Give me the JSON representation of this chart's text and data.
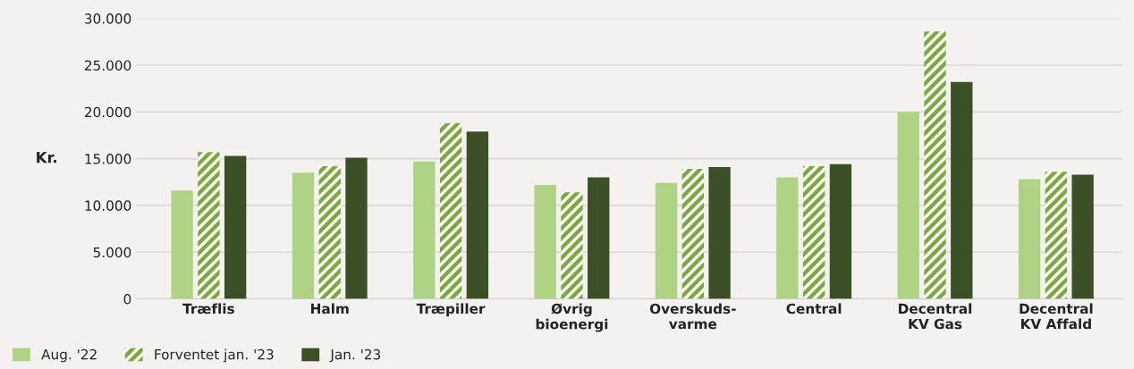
{
  "chart_data": {
    "type": "bar",
    "ylabel": "Kr.",
    "categories": [
      "Træflis",
      "Halm",
      "Træpiller",
      "Øvrig\nbioenergi",
      "Overskuds-\nvarme",
      "Central",
      "Decentral\nKV Gas",
      "Decentral\nKV Affald"
    ],
    "series": [
      {
        "name": "Aug. '22",
        "color": "#aed383",
        "values": [
          11600,
          13500,
          14700,
          12200,
          12400,
          13000,
          20000,
          12800
        ]
      },
      {
        "name": "Forventet jan. '23",
        "color": "#7aab3a",
        "values": [
          15700,
          14200,
          18800,
          11400,
          13900,
          14200,
          28600,
          13600
        ]
      },
      {
        "name": "Jan. '23",
        "color": "#3c5026",
        "values": [
          15300,
          15100,
          17900,
          13000,
          14100,
          14400,
          23200,
          13300
        ]
      }
    ],
    "ylim": [
      0,
      30000
    ],
    "yticks": [
      {
        "value": 0,
        "label": "0"
      },
      {
        "value": 5000,
        "label": "5.000"
      },
      {
        "value": 10000,
        "label": "10.000"
      },
      {
        "value": 15000,
        "label": "15.000"
      },
      {
        "value": 20000,
        "label": "20.000"
      },
      {
        "value": 25000,
        "label": "25.000"
      },
      {
        "value": 30000,
        "label": "30.000"
      }
    ],
    "grid": "y",
    "legend": "bottom left"
  }
}
